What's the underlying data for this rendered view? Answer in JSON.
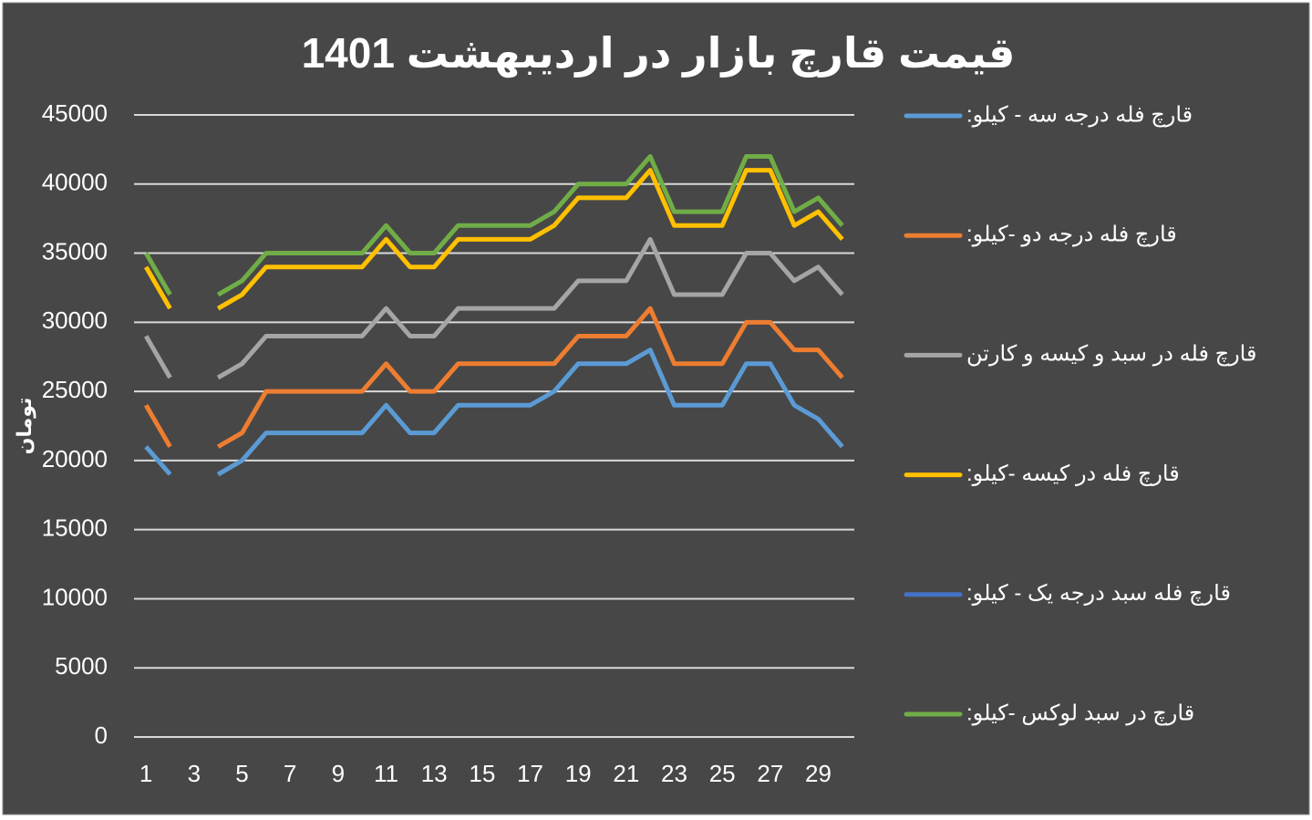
{
  "chart_data": {
    "type": "line",
    "title": "قیمت قارچ بازار در اردیبهشت 1401",
    "y_label": "تومان",
    "categories": [
      1,
      null,
      3,
      null,
      5,
      null,
      7,
      null,
      9,
      null,
      11,
      null,
      13,
      null,
      15,
      null,
      17,
      null,
      19,
      null,
      21,
      null,
      23,
      null,
      25,
      null,
      27,
      null,
      29,
      null
    ],
    "ylim": [
      0,
      45000
    ],
    "yticks": [
      0,
      5000,
      10000,
      15000,
      20000,
      25000,
      30000,
      35000,
      40000,
      45000
    ],
    "grid": true,
    "legend": "right",
    "series": [
      {
        "name": "قارچ فله درجه سه - کیلو:",
        "color": "#5b9bd5",
        "values": [
          21000,
          19000,
          null,
          19000,
          20000,
          22000,
          22000,
          22000,
          22000,
          22000,
          24000,
          22000,
          22000,
          24000,
          24000,
          24000,
          24000,
          25000,
          27000,
          27000,
          27000,
          28000,
          24000,
          24000,
          24000,
          27000,
          27000,
          24000,
          23000,
          21000
        ]
      },
      {
        "name": "قارچ فله درجه دو -کیلو:",
        "color": "#ed7d31",
        "values": [
          24000,
          21000,
          null,
          21000,
          22000,
          25000,
          25000,
          25000,
          25000,
          25000,
          27000,
          25000,
          25000,
          27000,
          27000,
          27000,
          27000,
          27000,
          29000,
          29000,
          29000,
          31000,
          27000,
          27000,
          27000,
          30000,
          30000,
          28000,
          28000,
          26000
        ]
      },
      {
        "name": "قارچ فله در سبد و کیسه و کارتن",
        "color": "#a5a5a5",
        "values": [
          29000,
          26000,
          null,
          26000,
          27000,
          29000,
          29000,
          29000,
          29000,
          29000,
          31000,
          29000,
          29000,
          31000,
          31000,
          31000,
          31000,
          31000,
          33000,
          33000,
          33000,
          36000,
          32000,
          32000,
          32000,
          35000,
          35000,
          33000,
          34000,
          32000
        ]
      },
      {
        "name": "قارچ فله در کیسه -کیلو:",
        "color": "#ffc000",
        "values": [
          34000,
          31000,
          null,
          31000,
          32000,
          34000,
          34000,
          34000,
          34000,
          34000,
          36000,
          34000,
          34000,
          36000,
          36000,
          36000,
          36000,
          37000,
          39000,
          39000,
          39000,
          41000,
          37000,
          37000,
          37000,
          41000,
          41000,
          37000,
          38000,
          36000
        ]
      },
      {
        "name": "قارچ فله سبد درجه یک - کیلو:",
        "color": "#4472c4",
        "values": [
          null,
          null,
          null,
          null,
          null,
          null,
          null,
          null,
          null,
          null,
          null,
          null,
          null,
          null,
          null,
          null,
          null,
          null,
          null,
          null,
          null,
          null,
          null,
          null,
          null,
          null,
          null,
          null,
          null,
          null
        ]
      },
      {
        "name": "قارچ در سبد لوکس -کیلو:",
        "color": "#70ad47",
        "values": [
          35000,
          32000,
          null,
          32000,
          33000,
          35000,
          35000,
          35000,
          35000,
          35000,
          37000,
          35000,
          35000,
          37000,
          37000,
          37000,
          37000,
          38000,
          40000,
          40000,
          40000,
          42000,
          38000,
          38000,
          38000,
          42000,
          42000,
          38000,
          39000,
          37000
        ]
      }
    ]
  }
}
